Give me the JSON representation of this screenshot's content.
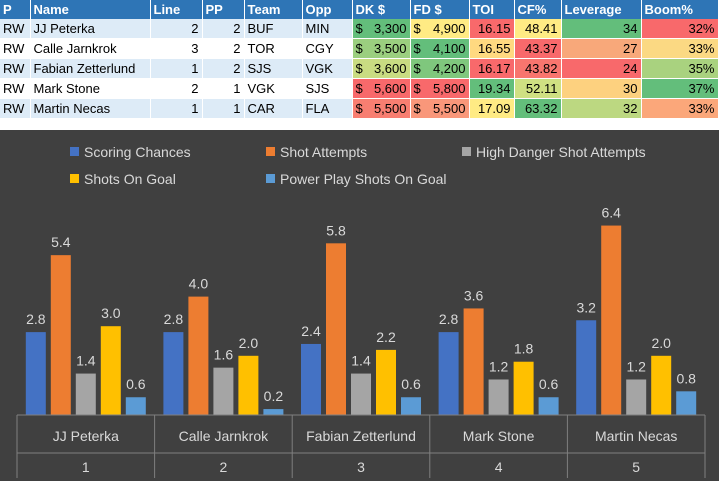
{
  "table": {
    "headers": [
      "P",
      "Name",
      "Line",
      "PP",
      "Team",
      "Opp",
      "DK $",
      "FD $",
      "TOI",
      "CF%",
      "Leverage",
      "Boom%"
    ],
    "rows": [
      {
        "p": "RW",
        "name": "JJ Peterka",
        "line": "2",
        "pp": "2",
        "team": "BUF",
        "opp": "MIN",
        "dk": "3,300",
        "fd": "4,900",
        "toi": "16.15",
        "cf": "48.41",
        "leverage": "34",
        "boom": "32%",
        "colors": {
          "dk": "#63be7b",
          "fd": "#ffeb84",
          "toi": "#f8696b",
          "cf": "#ffeb84",
          "leverage": "#63be7b",
          "boom": "#f8696b"
        }
      },
      {
        "p": "RW",
        "name": "Calle Jarnkrok",
        "line": "3",
        "pp": "2",
        "team": "TOR",
        "opp": "CGY",
        "dk": "3,500",
        "fd": "4,100",
        "toi": "16.55",
        "cf": "43.37",
        "leverage": "27",
        "boom": "33%",
        "colors": {
          "dk": "#9bcf7f",
          "fd": "#63be7b",
          "toi": "#ffd980",
          "cf": "#f8696b",
          "leverage": "#f8a87a",
          "boom": "#fbd983"
        }
      },
      {
        "p": "RW",
        "name": "Fabian Zetterlund",
        "line": "1",
        "pp": "2",
        "team": "SJS",
        "opp": "VGK",
        "dk": "3,600",
        "fd": "4,200",
        "toi": "16.17",
        "cf": "43.82",
        "leverage": "24",
        "boom": "35%",
        "colors": {
          "dk": "#c9dc82",
          "fd": "#7fc77d",
          "toi": "#f8696b",
          "cf": "#f8756e",
          "leverage": "#f8696b",
          "boom": "#a9d27f"
        }
      },
      {
        "p": "RW",
        "name": "Mark Stone",
        "line": "2",
        "pp": "1",
        "team": "VGK",
        "opp": "SJS",
        "dk": "5,600",
        "fd": "5,800",
        "toi": "19.34",
        "cf": "52.11",
        "leverage": "30",
        "boom": "37%",
        "colors": {
          "dk": "#f8696b",
          "fd": "#f8696b",
          "toi": "#63be7b",
          "cf": "#cfe082",
          "leverage": "#fdd17f",
          "boom": "#63be7b"
        }
      },
      {
        "p": "RW",
        "name": "Martin Necas",
        "line": "1",
        "pp": "1",
        "team": "CAR",
        "opp": "FLA",
        "dk": "5,500",
        "fd": "5,500",
        "toi": "17.09",
        "cf": "63.32",
        "leverage": "32",
        "boom": "33%",
        "colors": {
          "dk": "#f87e71",
          "fd": "#f9977a",
          "toi": "#ffeb84",
          "cf": "#63be7b",
          "leverage": "#bcd881",
          "boom": "#fba77a"
        }
      }
    ],
    "currency_symbol": "$"
  },
  "chart_data": {
    "type": "bar",
    "title": "",
    "xlabel": "",
    "ylabel": "",
    "categories": [
      "JJ Peterka",
      "Calle Jarnkrok",
      "Fabian Zetterlund",
      "Mark Stone",
      "Martin Necas"
    ],
    "category_index": [
      "1",
      "2",
      "3",
      "4",
      "5"
    ],
    "ylim": [
      0,
      7
    ],
    "grid": false,
    "legend_position": "top",
    "series": [
      {
        "name": "Scoring Chances",
        "values": [
          2.8,
          2.8,
          2.4,
          2.8,
          3.2
        ],
        "color": "#4472c4"
      },
      {
        "name": "Shot Attempts",
        "values": [
          5.4,
          4.0,
          5.8,
          3.6,
          6.4
        ],
        "color": "#ed7d31"
      },
      {
        "name": "High Danger Shot Attempts",
        "values": [
          1.4,
          1.6,
          1.4,
          1.2,
          1.2
        ],
        "color": "#a5a5a5"
      },
      {
        "name": "Shots On Goal",
        "values": [
          3.0,
          2.0,
          2.2,
          1.8,
          2.0
        ],
        "color": "#ffc000"
      },
      {
        "name": "Power Play Shots On Goal",
        "values": [
          0.6,
          0.2,
          0.6,
          0.6,
          0.8
        ],
        "color": "#5b9bd5"
      }
    ],
    "background": "#404040",
    "text_color": "#d9d9d9"
  }
}
